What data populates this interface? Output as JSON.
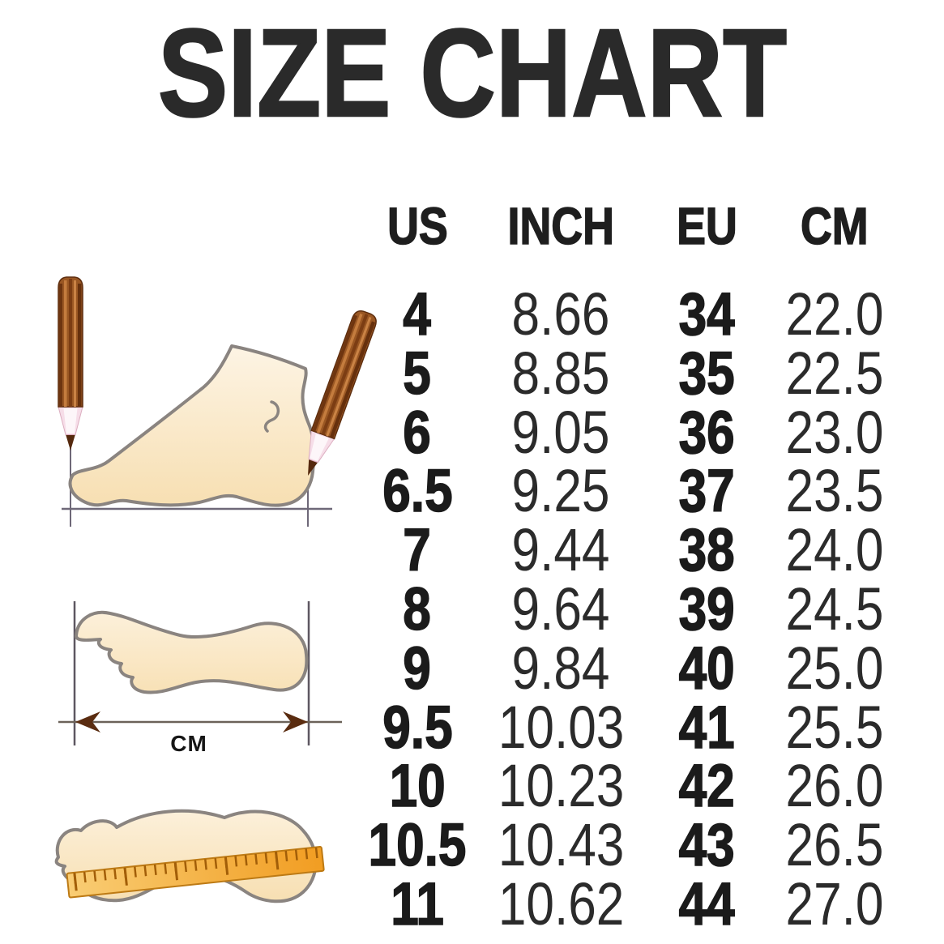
{
  "title": "SIZE CHART",
  "table": {
    "headers": [
      "US",
      "INCH",
      "EU",
      "CM"
    ],
    "rows": [
      [
        "4",
        "8.66",
        "34",
        "22.0"
      ],
      [
        "5",
        "8.85",
        "35",
        "22.5"
      ],
      [
        "6",
        "9.05",
        "36",
        "23.0"
      ],
      [
        "6.5",
        "9.25",
        "37",
        "23.5"
      ],
      [
        "7",
        "9.44",
        "38",
        "24.0"
      ],
      [
        "8",
        "9.64",
        "39",
        "24.5"
      ],
      [
        "9",
        "9.84",
        "40",
        "25.0"
      ],
      [
        "9.5",
        "10.03",
        "41",
        "25.5"
      ],
      [
        "10",
        "10.23",
        "42",
        "26.0"
      ],
      [
        "10.5",
        "10.43",
        "43",
        "26.5"
      ],
      [
        "11",
        "10.62",
        "44",
        "27.0"
      ]
    ]
  },
  "illustration_labels": {
    "cm_arrow": "CM"
  },
  "colors": {
    "background": "#ffffff",
    "text": "#2a2a2a",
    "foot_fill_light": "#fdf4e4",
    "foot_fill_dark": "#f7dfb2",
    "foot_outline": "#8a8480",
    "pencil_brown": "#9a5723",
    "pencil_tip_pink": "#f6dde8",
    "ruler_orange": "#f2a02a",
    "arrow_brown": "#5a2c10",
    "dimension_line": "#5d5761"
  },
  "chart_data": {
    "type": "table",
    "title": "SIZE CHART",
    "columns": [
      "US",
      "INCH",
      "EU",
      "CM"
    ],
    "rows": [
      [
        4,
        8.66,
        34,
        22.0
      ],
      [
        5,
        8.85,
        35,
        22.5
      ],
      [
        6,
        9.05,
        36,
        23.0
      ],
      [
        6.5,
        9.25,
        37,
        23.5
      ],
      [
        7,
        9.44,
        38,
        24.0
      ],
      [
        8,
        9.64,
        39,
        24.5
      ],
      [
        9,
        9.84,
        40,
        25.0
      ],
      [
        9.5,
        10.03,
        41,
        25.5
      ],
      [
        10,
        10.23,
        42,
        26.0
      ],
      [
        10.5,
        10.43,
        43,
        26.5
      ],
      [
        11,
        10.62,
        44,
        27.0
      ]
    ]
  }
}
